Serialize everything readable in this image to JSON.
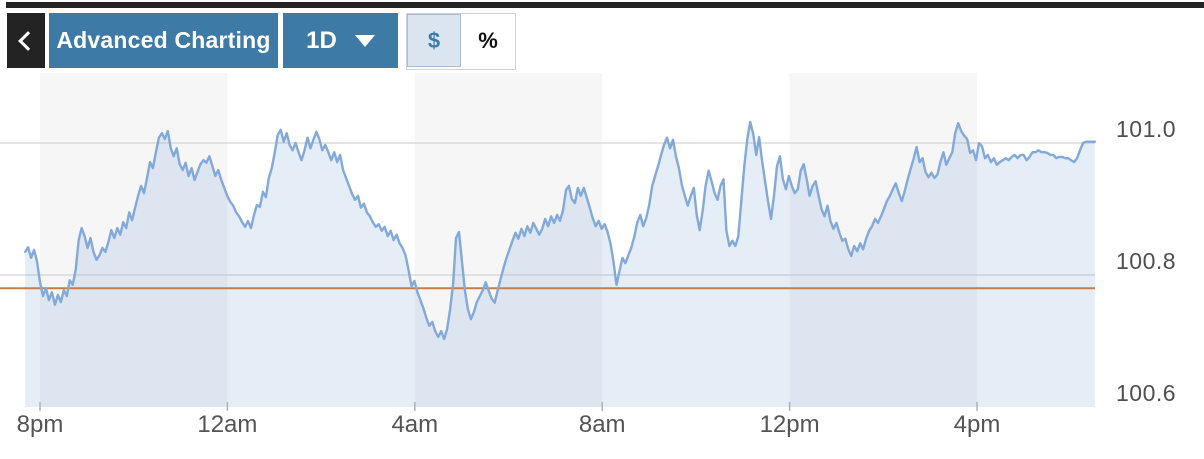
{
  "toolbar": {
    "advanced_charting_label": "Advanced Charting",
    "timeframe_label": "1D",
    "unit_dollar_label": "$",
    "unit_percent_label": "%",
    "selected_unit": "$"
  },
  "colors": {
    "accent_blue": "#3d7aa6",
    "line_blue": "#82a9da",
    "area_fill": "rgba(125,167,216,0.20)",
    "band_gray": "#f6f6f7",
    "grid_gray": "#d4d4d4",
    "prev_close_orange": "#c87c43",
    "toolbar_black": "#232323",
    "toggle_selected_bg": "#dbe5ef"
  },
  "chart_data": {
    "type": "line",
    "fill": "area",
    "title": "",
    "xlabel": "",
    "ylabel": "",
    "legend": "none",
    "grid": "horizontal",
    "ylim": [
      100.6,
      101.106
    ],
    "x_range_minutes": [
      -19,
      1351
    ],
    "band_minutes": [
      [
        0,
        240
      ],
      [
        480,
        720
      ],
      [
        960,
        1200
      ]
    ],
    "previous_close": 100.78,
    "x_ticks": [
      {
        "label": "8pm",
        "minute": 0
      },
      {
        "label": "12am",
        "minute": 240
      },
      {
        "label": "4am",
        "minute": 480
      },
      {
        "label": "8am",
        "minute": 720
      },
      {
        "label": "12pm",
        "minute": 960
      },
      {
        "label": "4pm",
        "minute": 1200
      }
    ],
    "y_ticks": [
      {
        "label": "101.0",
        "value": 101.0
      },
      {
        "label": "100.8",
        "value": 100.8
      },
      {
        "label": "100.6",
        "value": 100.6
      }
    ],
    "series": [
      {
        "name": "price",
        "values": [
          100.835,
          100.842,
          100.826,
          100.838,
          100.82,
          100.789,
          100.768,
          100.78,
          100.762,
          100.774,
          100.755,
          100.77,
          100.759,
          100.777,
          100.768,
          100.792,
          100.785,
          100.808,
          100.853,
          100.871,
          100.859,
          100.841,
          100.856,
          100.835,
          100.823,
          100.83,
          100.841,
          100.835,
          100.85,
          100.868,
          100.856,
          100.871,
          100.861,
          100.88,
          100.871,
          100.895,
          100.883,
          100.902,
          100.92,
          100.935,
          100.924,
          100.947,
          100.971,
          100.962,
          100.986,
          101.008,
          101.015,
          101.006,
          101.018,
          100.992,
          100.98,
          100.992,
          100.968,
          100.959,
          100.97,
          100.95,
          100.962,
          100.944,
          100.956,
          100.968,
          100.974,
          100.97,
          100.98,
          100.965,
          100.95,
          100.959,
          100.944,
          100.932,
          100.92,
          100.911,
          100.905,
          100.895,
          100.889,
          100.88,
          100.873,
          100.882,
          100.871,
          100.891,
          100.906,
          100.903,
          100.926,
          100.918,
          100.947,
          100.962,
          100.986,
          101.012,
          101.02,
          101.002,
          101.015,
          100.997,
          100.989,
          101.0,
          100.986,
          100.974,
          100.989,
          101.008,
          100.992,
          101.005,
          101.017,
          101.006,
          100.989,
          100.997,
          100.986,
          100.974,
          100.986,
          100.971,
          100.982,
          100.959,
          100.947,
          100.935,
          100.923,
          100.914,
          100.92,
          100.902,
          100.908,
          100.895,
          100.889,
          100.88,
          100.873,
          100.877,
          100.867,
          100.873,
          100.859,
          100.867,
          100.853,
          100.861,
          100.848,
          100.841,
          100.83,
          100.808,
          100.783,
          100.791,
          100.774,
          100.762,
          100.75,
          100.735,
          100.723,
          100.729,
          100.715,
          100.706,
          100.715,
          100.703,
          100.718,
          100.748,
          100.786,
          100.856,
          100.865,
          100.82,
          100.777,
          100.748,
          100.733,
          100.744,
          100.759,
          100.768,
          100.777,
          100.789,
          100.776,
          100.764,
          100.758,
          100.776,
          100.794,
          100.811,
          100.826,
          100.839,
          100.852,
          100.864,
          100.855,
          100.87,
          100.859,
          100.874,
          100.864,
          100.879,
          100.87,
          100.861,
          100.87,
          100.885,
          100.874,
          100.889,
          100.879,
          100.891,
          100.882,
          100.898,
          100.929,
          100.935,
          100.915,
          100.909,
          100.932,
          100.92,
          100.932,
          100.917,
          100.902,
          100.886,
          100.874,
          100.882,
          100.87,
          100.877,
          100.865,
          100.847,
          100.82,
          100.785,
          100.806,
          100.826,
          100.818,
          100.83,
          100.842,
          100.858,
          100.88,
          100.891,
          100.874,
          100.886,
          100.906,
          100.935,
          100.95,
          100.965,
          100.982,
          100.997,
          101.008,
          100.992,
          101.005,
          100.98,
          100.962,
          100.936,
          100.92,
          100.905,
          100.92,
          100.932,
          100.891,
          100.868,
          100.898,
          100.935,
          100.958,
          100.942,
          100.924,
          100.914,
          100.935,
          100.945,
          100.867,
          100.844,
          100.852,
          100.844,
          100.859,
          100.912,
          100.965,
          101.005,
          101.032,
          101.014,
          100.982,
          101.009,
          100.973,
          100.942,
          100.912,
          100.885,
          100.92,
          100.965,
          100.98,
          100.945,
          100.93,
          100.95,
          100.935,
          100.924,
          100.93,
          100.958,
          100.968,
          100.945,
          100.92,
          100.935,
          100.942,
          100.92,
          100.9,
          100.889,
          100.905,
          100.882,
          100.87,
          100.879,
          100.864,
          100.852,
          100.855,
          100.839,
          100.829,
          100.844,
          100.836,
          100.848,
          100.839,
          100.855,
          100.867,
          100.874,
          100.885,
          100.879,
          100.889,
          100.9,
          100.912,
          100.92,
          100.93,
          100.939,
          100.924,
          100.912,
          100.927,
          100.945,
          100.961,
          100.976,
          100.994,
          100.971,
          100.977,
          100.956,
          100.948,
          100.955,
          100.947,
          100.952,
          100.971,
          100.986,
          100.967,
          100.977,
          100.986,
          101.015,
          101.03,
          101.018,
          101.011,
          101.006,
          100.985,
          100.989,
          100.974,
          101.0,
          100.995,
          100.977,
          100.982,
          100.971,
          100.977,
          100.967,
          100.971,
          100.974,
          100.977,
          100.974,
          100.979,
          100.982,
          100.977,
          100.982,
          100.982,
          100.974,
          100.979,
          100.986,
          100.986,
          100.989,
          100.986,
          100.986,
          100.985,
          100.982,
          100.982,
          100.977,
          100.979,
          100.979,
          100.977,
          100.977,
          100.974,
          100.971,
          100.977,
          100.989,
          101.0,
          101.002,
          101.002,
          101.002,
          101.002
        ]
      }
    ]
  }
}
